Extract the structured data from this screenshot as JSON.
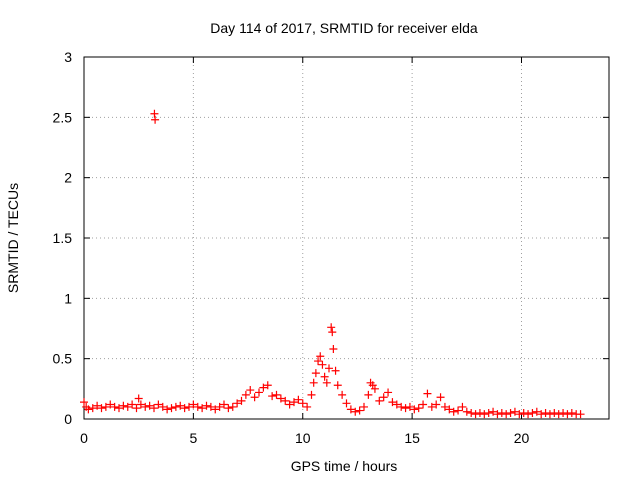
{
  "chart_data": {
    "type": "scatter",
    "title": "Day 114 of 2017, SRMTID for receiver elda",
    "xlabel": "GPS time / hours",
    "ylabel": "SRMTID / TECUs",
    "xlim": [
      0,
      24
    ],
    "ylim": [
      0,
      3
    ],
    "xticks": [
      0,
      5,
      10,
      15,
      20
    ],
    "xtick_labels": [
      "0",
      "5",
      "10",
      "15",
      "20"
    ],
    "yticks": [
      0,
      0.5,
      1,
      1.5,
      2,
      2.5,
      3
    ],
    "ytick_labels": [
      "0",
      "0.5",
      "1",
      "1.5",
      "2",
      "2.5",
      "3"
    ],
    "grid": true,
    "marker": "+",
    "color": "#ff0000",
    "series": [
      {
        "name": "SRMTID",
        "x": [
          0.0,
          0.1,
          0.2,
          0.4,
          0.6,
          0.8,
          1.0,
          1.2,
          1.4,
          1.6,
          1.8,
          2.0,
          2.2,
          2.4,
          2.5,
          2.6,
          2.8,
          3.0,
          3.2,
          3.22,
          3.25,
          3.4,
          3.6,
          3.8,
          4.0,
          4.2,
          4.4,
          4.6,
          4.8,
          5.0,
          5.2,
          5.4,
          5.6,
          5.8,
          6.0,
          6.2,
          6.4,
          6.6,
          6.8,
          7.0,
          7.2,
          7.4,
          7.6,
          7.8,
          8.0,
          8.2,
          8.4,
          8.6,
          8.8,
          9.0,
          9.2,
          9.4,
          9.6,
          9.8,
          10.0,
          10.2,
          10.4,
          10.5,
          10.6,
          10.7,
          10.8,
          10.9,
          11.0,
          11.1,
          11.2,
          11.3,
          11.35,
          11.4,
          11.5,
          11.6,
          11.8,
          12.0,
          12.2,
          12.4,
          12.6,
          12.8,
          13.0,
          13.1,
          13.2,
          13.3,
          13.5,
          13.7,
          13.9,
          14.1,
          14.3,
          14.5,
          14.7,
          14.9,
          15.1,
          15.3,
          15.5,
          15.7,
          15.9,
          16.1,
          16.3,
          16.5,
          16.7,
          16.9,
          17.1,
          17.3,
          17.5,
          17.7,
          17.9,
          18.1,
          18.3,
          18.5,
          18.7,
          18.9,
          19.1,
          19.3,
          19.5,
          19.7,
          19.9,
          20.1,
          20.3,
          20.5,
          20.7,
          20.9,
          21.1,
          21.3,
          21.5,
          21.7,
          21.9,
          22.1,
          22.3,
          22.5,
          22.7
        ],
        "y": [
          0.14,
          0.1,
          0.08,
          0.09,
          0.11,
          0.09,
          0.1,
          0.12,
          0.1,
          0.09,
          0.11,
          0.1,
          0.12,
          0.09,
          0.17,
          0.12,
          0.1,
          0.11,
          0.09,
          2.53,
          2.48,
          0.12,
          0.1,
          0.08,
          0.09,
          0.1,
          0.11,
          0.09,
          0.1,
          0.12,
          0.1,
          0.09,
          0.11,
          0.1,
          0.08,
          0.1,
          0.12,
          0.09,
          0.1,
          0.13,
          0.15,
          0.2,
          0.24,
          0.18,
          0.22,
          0.26,
          0.28,
          0.19,
          0.2,
          0.17,
          0.15,
          0.12,
          0.14,
          0.16,
          0.13,
          0.1,
          0.2,
          0.3,
          0.38,
          0.48,
          0.52,
          0.45,
          0.35,
          0.3,
          0.42,
          0.76,
          0.72,
          0.58,
          0.4,
          0.28,
          0.2,
          0.13,
          0.08,
          0.06,
          0.07,
          0.1,
          0.2,
          0.3,
          0.28,
          0.25,
          0.15,
          0.18,
          0.22,
          0.14,
          0.12,
          0.1,
          0.09,
          0.1,
          0.08,
          0.09,
          0.12,
          0.21,
          0.1,
          0.12,
          0.18,
          0.1,
          0.08,
          0.06,
          0.07,
          0.1,
          0.06,
          0.05,
          0.04,
          0.05,
          0.04,
          0.05,
          0.06,
          0.04,
          0.05,
          0.04,
          0.05,
          0.06,
          0.04,
          0.05,
          0.04,
          0.05,
          0.06,
          0.04,
          0.05,
          0.04,
          0.05,
          0.04,
          0.05,
          0.04,
          0.05,
          0.04,
          0.04
        ]
      }
    ]
  }
}
